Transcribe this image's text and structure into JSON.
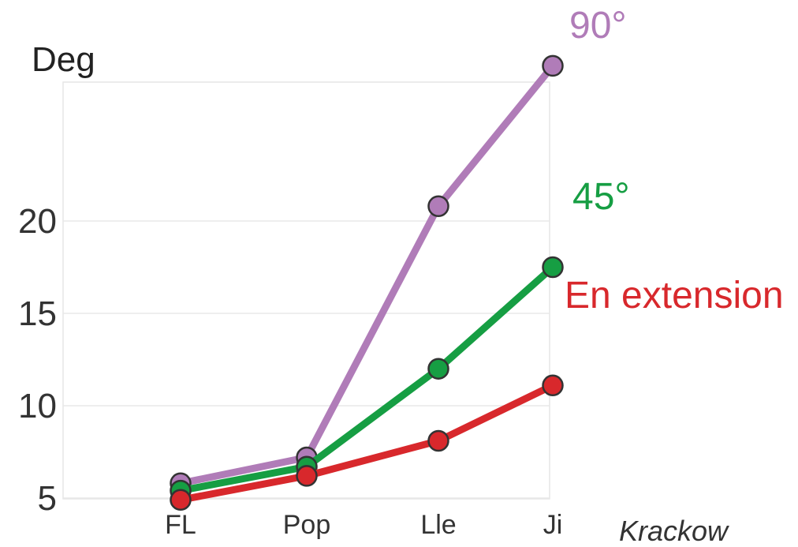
{
  "chart_data": {
    "type": "line",
    "ylabel": "Deg",
    "xlabel": "Krackow",
    "categories": [
      "FL",
      "Pop",
      "Lle",
      "Ji"
    ],
    "yticks": [
      "5",
      "10",
      "15",
      "20"
    ],
    "ylim": [
      0,
      25
    ],
    "grid": true,
    "legend_placement": "inline-right",
    "series": [
      {
        "name": "90°",
        "color": "#b07cb8",
        "values": [
          5.8,
          7.2,
          20.8,
          28.4
        ]
      },
      {
        "name": "45°",
        "color": "#169e43",
        "values": [
          5.4,
          6.7,
          12.0,
          17.5
        ]
      },
      {
        "name": "En extension",
        "color": "#d8282c",
        "values": [
          4.9,
          6.2,
          8.1,
          11.1
        ]
      }
    ]
  }
}
